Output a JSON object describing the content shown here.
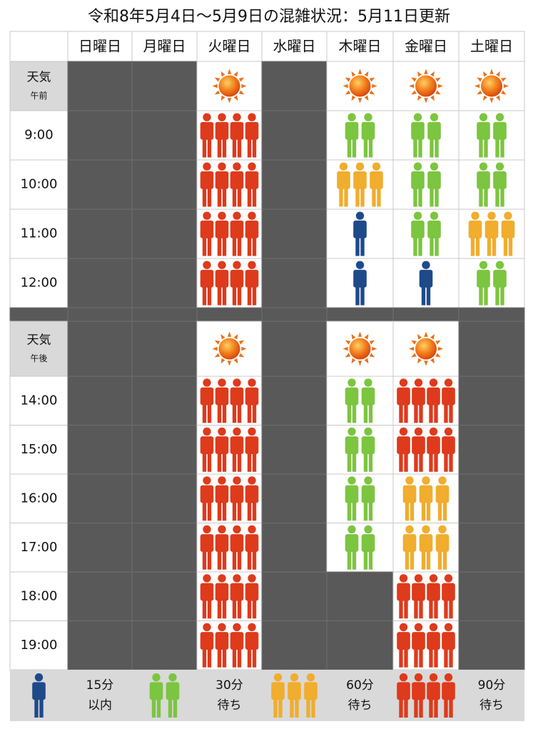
{
  "title": "令和8年5月4日〜5月9日の混雑状況：5月11日更新",
  "days": [
    "日曜日",
    "月曜日",
    "火曜日",
    "水曜日",
    "木曜日",
    "金曜日",
    "土曜日"
  ],
  "people_colors": [
    "#1f4a8a",
    "#7cc540",
    "#f0ad2e",
    "#de3a1c"
  ],
  "am": {
    "weather_label": "天気",
    "period": "午前",
    "sunny": [
      false,
      false,
      true,
      false,
      true,
      true,
      true
    ],
    "rows": [
      {
        "time": "9:00",
        "crowd": [
          null,
          null,
          4,
          null,
          2,
          2,
          2
        ]
      },
      {
        "time": "10:00",
        "crowd": [
          null,
          null,
          4,
          null,
          3,
          2,
          2
        ]
      },
      {
        "time": "11:00",
        "crowd": [
          null,
          null,
          4,
          null,
          1,
          2,
          3
        ]
      },
      {
        "time": "12:00",
        "crowd": [
          null,
          null,
          4,
          null,
          1,
          1,
          2
        ]
      }
    ]
  },
  "pm": {
    "weather_label": "天気",
    "period": "午後",
    "sunny": [
      false,
      false,
      true,
      false,
      true,
      true,
      false
    ],
    "rows": [
      {
        "time": "14:00",
        "crowd": [
          null,
          null,
          4,
          null,
          2,
          4,
          null
        ]
      },
      {
        "time": "15:00",
        "crowd": [
          null,
          null,
          4,
          null,
          2,
          4,
          null
        ]
      },
      {
        "time": "16:00",
        "crowd": [
          null,
          null,
          4,
          null,
          2,
          3,
          null
        ]
      },
      {
        "time": "17:00",
        "crowd": [
          null,
          null,
          4,
          null,
          2,
          3,
          null
        ]
      },
      {
        "time": "18:00",
        "crowd": [
          null,
          null,
          4,
          null,
          null,
          4,
          null
        ]
      },
      {
        "time": "19:00",
        "crowd": [
          null,
          null,
          4,
          null,
          null,
          4,
          null
        ]
      }
    ]
  },
  "legend": [
    {
      "people": 1,
      "text": [
        "15分",
        "以内"
      ]
    },
    {
      "people": 2,
      "text": [
        "30分",
        "待ち"
      ]
    },
    {
      "people": 3,
      "text": [
        "60分",
        "待ち"
      ]
    },
    {
      "people": 4,
      "text": [
        "90分",
        "待ち"
      ]
    }
  ]
}
